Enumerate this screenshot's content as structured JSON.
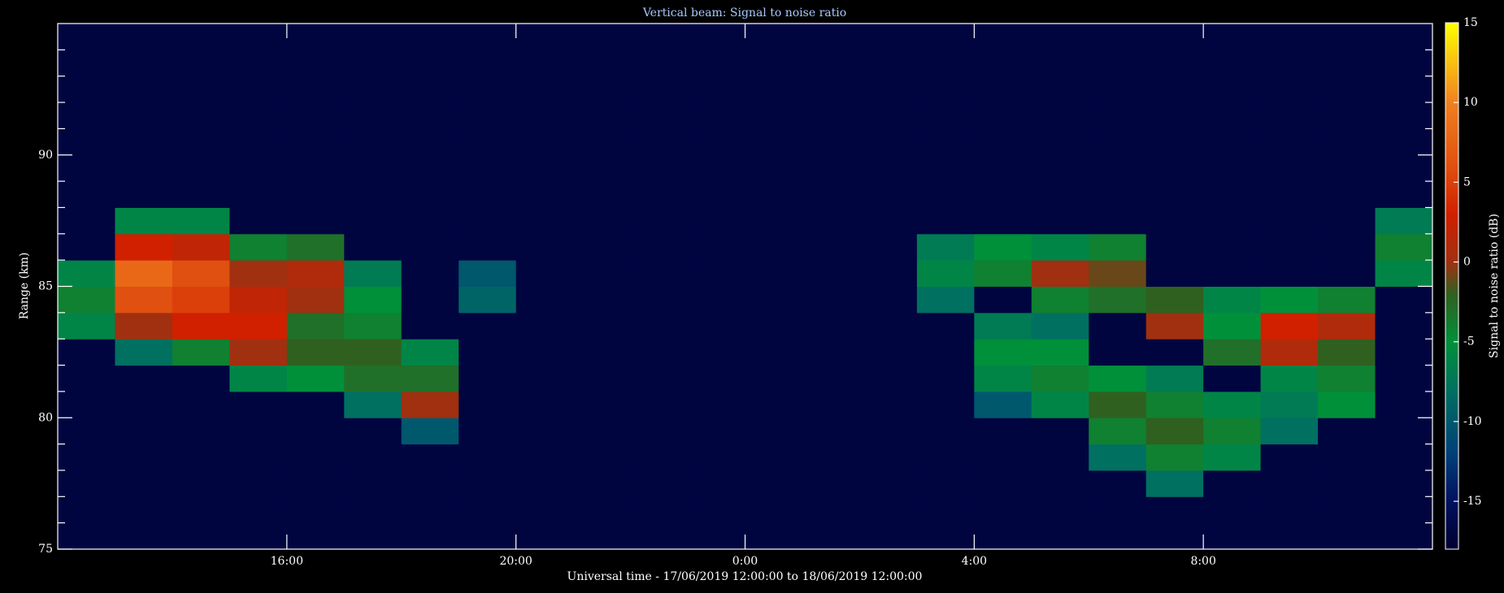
{
  "chart_data": {
    "type": "heatmap",
    "title": "Vertical beam: Signal to noise ratio",
    "xlabel": "Universal time - 17/06/2019 12:00:00 to 18/06/2019 12:00:00",
    "ylabel": "Range (km)",
    "xlim": [
      12,
      36
    ],
    "xticks": [
      {
        "value": 16,
        "label": "16:00"
      },
      {
        "value": 20,
        "label": "20:00"
      },
      {
        "value": 24,
        "label": "0:00"
      },
      {
        "value": 28,
        "label": "4:00"
      },
      {
        "value": 32,
        "label": "8:00"
      }
    ],
    "ylim": [
      75,
      95
    ],
    "yticks": [
      75,
      80,
      85,
      90
    ],
    "yminorticks": [
      76,
      77,
      78,
      79,
      81,
      82,
      83,
      84,
      86,
      87,
      88,
      89,
      91,
      92,
      93,
      94
    ],
    "x": [
      12,
      13,
      14,
      15,
      16,
      17,
      18,
      19,
      20,
      21,
      22,
      23,
      24,
      25,
      26,
      27,
      28,
      29,
      30,
      31,
      32,
      33,
      34,
      35
    ],
    "y": [
      75,
      76,
      77,
      78,
      79,
      80,
      81,
      82,
      83,
      84,
      85,
      86,
      87,
      88,
      89,
      90,
      91,
      92,
      93,
      94
    ],
    "values": [
      [
        -17,
        -17,
        -17,
        -17,
        -17,
        -17,
        -17,
        -17,
        -17,
        -17,
        -17,
        -17,
        -17,
        -17,
        -17,
        -17,
        -17,
        -17,
        -17,
        -17,
        -17,
        -17,
        -17,
        -17
      ],
      [
        -17,
        -17,
        -17,
        -17,
        -17,
        -17,
        -17,
        -17,
        -17,
        -17,
        -17,
        -17,
        -17,
        -17,
        -17,
        -17,
        -17,
        -17,
        -17,
        -17,
        -17,
        -17,
        -17,
        -17
      ],
      [
        -17,
        -17,
        -17,
        -17,
        -17,
        -17,
        -17,
        -17,
        -17,
        -17,
        -17,
        -17,
        -17,
        -17,
        -17,
        -17,
        -17,
        -17,
        -17,
        -8,
        -17,
        -17,
        -17,
        -17
      ],
      [
        -17,
        -17,
        -17,
        -17,
        -17,
        -17,
        -17,
        -17,
        -17,
        -17,
        -17,
        -17,
        -17,
        -17,
        -17,
        -17,
        -17,
        -17,
        -8,
        -4,
        -6,
        -17,
        -17,
        -17
      ],
      [
        -17,
        -17,
        -17,
        -17,
        -17,
        -17,
        -10,
        -17,
        -17,
        -17,
        -17,
        -17,
        -17,
        -17,
        -17,
        -17,
        -17,
        -17,
        -4,
        -2,
        -4,
        -8,
        -17,
        -17
      ],
      [
        -17,
        -17,
        -17,
        -17,
        -17,
        -8,
        0,
        -17,
        -17,
        -17,
        -17,
        -17,
        -17,
        -17,
        -17,
        -17,
        -10,
        -6,
        -2,
        -4,
        -6,
        -7,
        -5,
        -17
      ],
      [
        -17,
        -17,
        -17,
        -6,
        -5,
        -3,
        -3,
        -17,
        -17,
        -17,
        -17,
        -17,
        -17,
        -17,
        -17,
        -17,
        -6,
        -4,
        -5,
        -7,
        -17,
        -6,
        -4,
        -17
      ],
      [
        -17,
        -8,
        -4,
        0,
        -2,
        -2,
        -6,
        -17,
        -17,
        -17,
        -17,
        -17,
        -17,
        -17,
        -17,
        -17,
        -5,
        -5,
        -17,
        -17,
        -3,
        1,
        -2,
        -17
      ],
      [
        -6,
        0,
        3,
        3,
        -3,
        -4,
        -17,
        -17,
        -17,
        -17,
        -17,
        -17,
        -17,
        -17,
        -17,
        -17,
        -7,
        -8,
        -17,
        0,
        -5,
        3,
        1,
        -17
      ],
      [
        -4,
        6,
        5,
        2,
        0,
        -5,
        -17,
        -9,
        -17,
        -17,
        -17,
        -17,
        -17,
        -17,
        -17,
        -8,
        -17,
        -4,
        -3,
        -2,
        -6,
        -5,
        -4,
        -17
      ],
      [
        -6,
        8,
        6,
        0,
        1,
        -7,
        -17,
        -10,
        -17,
        -17,
        -17,
        -17,
        -17,
        -17,
        -17,
        -6,
        -4,
        0,
        -1,
        -17,
        -17,
        -17,
        -17,
        -6
      ],
      [
        -17,
        3,
        2,
        -4,
        -3,
        -17,
        -17,
        -17,
        -17,
        -17,
        -17,
        -17,
        -17,
        -17,
        -17,
        -7,
        -5,
        -6,
        -4,
        -17,
        -17,
        -17,
        -17,
        -4
      ],
      [
        -17,
        -6,
        -6,
        -17,
        -17,
        -17,
        -17,
        -17,
        -17,
        -17,
        -17,
        -17,
        -17,
        -17,
        -17,
        -17,
        -17,
        -17,
        -17,
        -17,
        -17,
        -17,
        -17,
        -7
      ],
      [
        -17,
        -17,
        -17,
        -17,
        -17,
        -17,
        -17,
        -17,
        -17,
        -17,
        -17,
        -17,
        -17,
        -17,
        -17,
        -17,
        -17,
        -17,
        -17,
        -17,
        -17,
        -17,
        -17,
        -17
      ],
      [
        -17,
        -17,
        -17,
        -17,
        -17,
        -17,
        -17,
        -17,
        -17,
        -17,
        -17,
        -17,
        -17,
        -17,
        -17,
        -17,
        -17,
        -17,
        -17,
        -17,
        -17,
        -17,
        -17,
        -17
      ],
      [
        -17,
        -17,
        -17,
        -17,
        -17,
        -17,
        -17,
        -17,
        -17,
        -17,
        -17,
        -17,
        -17,
        -17,
        -17,
        -17,
        -17,
        -17,
        -17,
        -17,
        -17,
        -17,
        -17,
        -17
      ],
      [
        -17,
        -17,
        -17,
        -17,
        -17,
        -17,
        -17,
        -17,
        -17,
        -17,
        -17,
        -17,
        -17,
        -17,
        -17,
        -17,
        -17,
        -17,
        -17,
        -17,
        -17,
        -17,
        -17,
        -17
      ],
      [
        -17,
        -17,
        -17,
        -17,
        -17,
        -17,
        -17,
        -17,
        -17,
        -17,
        -17,
        -17,
        -17,
        -17,
        -17,
        -17,
        -17,
        -17,
        -17,
        -17,
        -17,
        -17,
        -17,
        -17
      ],
      [
        -17,
        -17,
        -17,
        -17,
        -17,
        -17,
        -17,
        -17,
        -17,
        -17,
        -17,
        -17,
        -17,
        -17,
        -17,
        -17,
        -17,
        -17,
        -17,
        -17,
        -17,
        -17,
        -17,
        -17
      ],
      [
        -17,
        -17,
        -17,
        -17,
        -17,
        -17,
        -17,
        -17,
        -17,
        -17,
        -17,
        -17,
        -17,
        -17,
        -17,
        -17,
        -17,
        -17,
        -17,
        -17,
        -17,
        -17,
        -17,
        -17
      ]
    ],
    "colorscale": [
      [
        -18,
        "#000030"
      ],
      [
        -15,
        "#001060"
      ],
      [
        -12,
        "#00407a"
      ],
      [
        -8,
        "#007060"
      ],
      [
        -5,
        "#00903a"
      ],
      [
        -2,
        "#306020"
      ],
      [
        0,
        "#a03010"
      ],
      [
        3,
        "#d02000"
      ],
      [
        6,
        "#e05010"
      ],
      [
        10,
        "#f08020"
      ],
      [
        15,
        "#ffff00"
      ]
    ],
    "colorbar": {
      "label": "Signal to noise ratio (dB)",
      "lim": [
        -18,
        15
      ],
      "ticks": [
        -15,
        -10,
        -5,
        0,
        5,
        10,
        15
      ]
    }
  }
}
